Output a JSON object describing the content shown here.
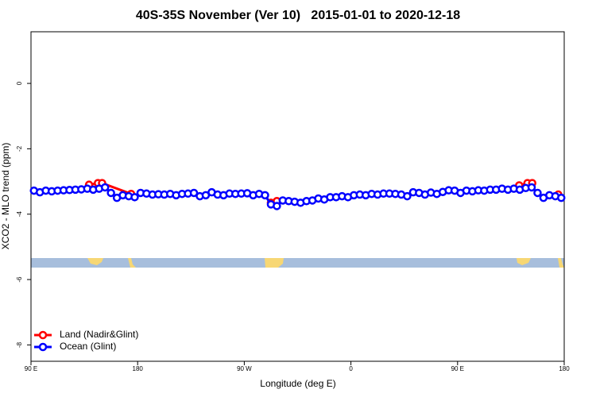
{
  "chart_data": {
    "type": "line",
    "title": "40S-35S November (Ver 10)   2015-01-01 to 2020-12-18",
    "x_label": "Longitude (deg E)",
    "y_label": "XCO2 - MLO trend (ppm)",
    "xlim": [
      90,
      540
    ],
    "ylim": [
      -8.5,
      1.58
    ],
    "xticks": [
      {
        "value": 90,
        "label": "90 E"
      },
      {
        "value": 180,
        "label": "180"
      },
      {
        "value": 270,
        "label": "90 W"
      },
      {
        "value": 360,
        "label": "0"
      },
      {
        "value": 450,
        "label": "90 E"
      },
      {
        "value": 540,
        "label": "180"
      }
    ],
    "yticks": [
      0,
      -2,
      -4,
      -6,
      -8
    ],
    "legend": "bottom-left",
    "series": [
      {
        "name": "Land (Nadir&Glint)",
        "color": "#ff0000",
        "x": [
          139,
          146.5,
          150,
          174.5,
          null,
          292.5,
          297.5,
          null,
          502,
          509,
          513,
          null,
          535
        ],
        "values": [
          -3.1,
          -3.05,
          -3.05,
          -3.38,
          null,
          -3.65,
          -3.6,
          null,
          -3.12,
          -3.05,
          -3.05,
          null,
          -3.4
        ]
      },
      {
        "name": "Ocean (Glint)",
        "color": "#0000ff",
        "x": [
          92.5,
          97.5,
          102.5,
          107.5,
          112.5,
          117.5,
          122.5,
          127.5,
          132.5,
          137.5,
          142.5,
          147.5,
          152.5,
          157.5,
          162.5,
          167.5,
          172.5,
          177.5,
          182.5,
          187.5,
          192.5,
          197.5,
          202.5,
          207.5,
          212.5,
          217.5,
          222.5,
          227.5,
          232.5,
          237.5,
          242.5,
          247.5,
          252.5,
          257.5,
          262.5,
          267.5,
          272.5,
          277.5,
          282.5,
          287.5,
          292.5,
          297.5,
          302.5,
          307.5,
          312.5,
          317.5,
          322.5,
          327.5,
          332.5,
          337.5,
          342.5,
          347.5,
          352.5,
          357.5,
          362.5,
          367.5,
          372.5,
          377.5,
          382.5,
          387.5,
          392.5,
          397.5,
          402.5,
          407.5,
          412.5,
          417.5,
          422.5,
          427.5,
          432.5,
          437.5,
          442.5,
          447.5,
          452.5,
          457.5,
          462.5,
          467.5,
          472.5,
          477.5,
          482.5,
          487.5,
          492.5,
          497.5,
          502.5,
          507.5,
          512.5,
          517.5,
          522.5,
          527.5,
          532.5,
          537.5
        ],
        "values": [
          -3.28,
          -3.33,
          -3.28,
          -3.3,
          -3.28,
          -3.27,
          -3.26,
          -3.25,
          -3.24,
          -3.22,
          -3.25,
          -3.22,
          -3.18,
          -3.35,
          -3.5,
          -3.42,
          -3.45,
          -3.48,
          -3.35,
          -3.37,
          -3.4,
          -3.39,
          -3.4,
          -3.38,
          -3.42,
          -3.38,
          -3.37,
          -3.35,
          -3.45,
          -3.42,
          -3.33,
          -3.4,
          -3.42,
          -3.37,
          -3.38,
          -3.37,
          -3.36,
          -3.42,
          -3.38,
          -3.42,
          -3.7,
          -3.75,
          -3.58,
          -3.6,
          -3.62,
          -3.65,
          -3.6,
          -3.58,
          -3.52,
          -3.55,
          -3.48,
          -3.48,
          -3.45,
          -3.48,
          -3.42,
          -3.4,
          -3.42,
          -3.38,
          -3.4,
          -3.37,
          -3.37,
          -3.38,
          -3.4,
          -3.45,
          -3.33,
          -3.35,
          -3.4,
          -3.34,
          -3.38,
          -3.32,
          -3.27,
          -3.28,
          -3.35,
          -3.28,
          -3.3,
          -3.27,
          -3.28,
          -3.25,
          -3.25,
          -3.22,
          -3.25,
          -3.22,
          -3.25,
          -3.2,
          -3.18,
          -3.35,
          -3.5,
          -3.42,
          -3.45,
          -3.5
        ]
      }
    ]
  }
}
